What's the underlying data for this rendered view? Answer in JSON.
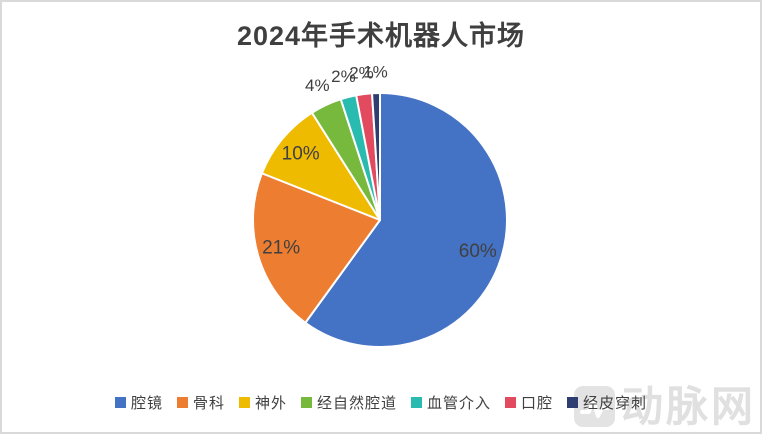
{
  "chart_data": {
    "type": "pie",
    "title": "2024年手术机器人市场",
    "categories": [
      "腔镜",
      "骨科",
      "神外",
      "经自然腔道",
      "血管介入",
      "口腔",
      "经皮穿刺"
    ],
    "values": [
      60,
      21,
      10,
      4,
      2,
      2,
      1
    ],
    "labels": [
      "60%",
      "21%",
      "10%",
      "4%",
      "2%",
      "2%",
      "1%"
    ],
    "colors": [
      "#4472C4",
      "#ED7D31",
      "#EFBB00",
      "#76B93C",
      "#2ABBB0",
      "#E24A5F",
      "#2F3E70"
    ],
    "unit": "%",
    "start_angle_deg": 0,
    "direction": "clockwise",
    "legend_position": "bottom",
    "label_color": "#404040",
    "slice_border_color": "#FFFFFF"
  },
  "watermark": {
    "text": "动脉网"
  }
}
